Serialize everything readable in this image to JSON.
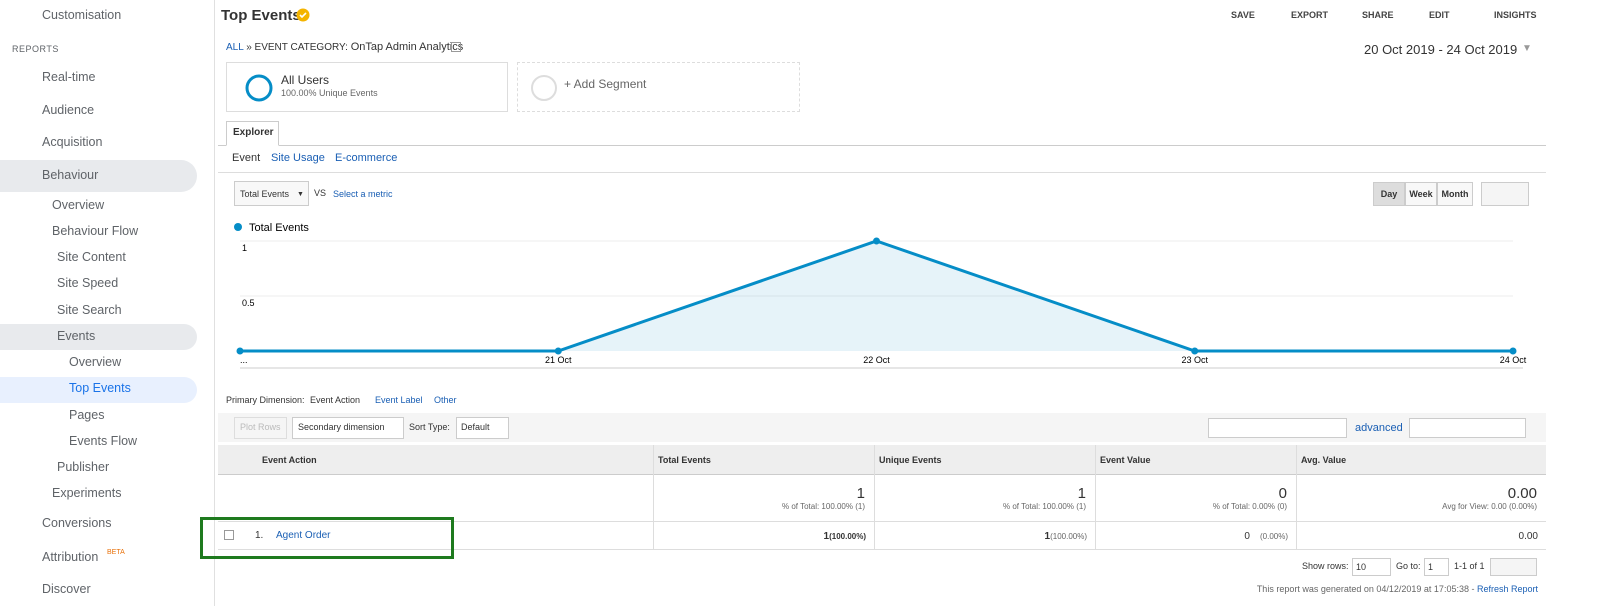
{
  "sidebar": {
    "top": "Customisation",
    "section": "REPORTS",
    "items": [
      "Real-time",
      "Audience",
      "Acquisition",
      "Behaviour",
      "Overview",
      "Behaviour Flow",
      "Site Content",
      "Site Speed",
      "Site Search",
      "Events",
      "Overview",
      "Top Events",
      "Pages",
      "Events Flow",
      "Publisher",
      "Experiments",
      "Conversions",
      "Attribution",
      "Discover"
    ],
    "beta": "BETA"
  },
  "header": {
    "title": "Top Events",
    "actions": [
      "SAVE",
      "EXPORT",
      "SHARE",
      "EDIT",
      "INSIGHTS"
    ]
  },
  "breadcrumb": {
    "all": "ALL",
    "separator": "»",
    "category_label": "EVENT CATEGORY:",
    "category": "OnTap Admin Analytics"
  },
  "date_range": "20 Oct 2019 - 24 Oct 2019",
  "segments": {
    "name": "All Users",
    "detail": "100.00% Unique Events",
    "add": "+ Add Segment"
  },
  "tabs": {
    "main": "Explorer",
    "sub": [
      "Event",
      "Site Usage",
      "E-commerce"
    ]
  },
  "metric": {
    "selected": "Total Events",
    "vs": "VS",
    "select": "Select a metric"
  },
  "granularity": [
    "Day",
    "Week",
    "Month"
  ],
  "chart_data": {
    "type": "line",
    "categories": [
      "...",
      "21 Oct",
      "22 Oct",
      "23 Oct",
      "24 Oct"
    ],
    "series": [
      {
        "name": "Total Events",
        "color": "#058dc7",
        "values": [
          0,
          0,
          1,
          0,
          0
        ]
      }
    ],
    "ylim": [
      0,
      1
    ],
    "yticks": [
      0.5,
      1
    ],
    "grid": true
  },
  "dimension": {
    "label": "Primary Dimension:",
    "options": [
      "Event Action",
      "Event Label",
      "Other"
    ]
  },
  "toolbar": {
    "plot_rows": "Plot Rows",
    "secondary": "Secondary dimension",
    "sort_label": "Sort Type:",
    "sort": "Default",
    "advanced": "advanced"
  },
  "table": {
    "columns": [
      "Event Action",
      "Total Events",
      "Unique Events",
      "Event Value",
      "Avg. Value"
    ],
    "totals": [
      [
        "1",
        "% of Total: 100.00% (1)"
      ],
      [
        "1",
        "% of Total: 100.00% (1)"
      ],
      [
        "0",
        "% of Total: 0.00% (0)"
      ],
      [
        "0.00",
        "Avg for View: 0.00 (0.00%)"
      ]
    ],
    "rows": [
      {
        "index": "1.",
        "name": "Agent Order",
        "cells": [
          [
            "1",
            "(100.00%)"
          ],
          [
            "1",
            "(100.00%)"
          ],
          [
            "0",
            "(0.00%)"
          ],
          [
            "0.00",
            ""
          ]
        ]
      }
    ]
  },
  "footer": {
    "show_rows": "Show rows:",
    "rows": "10",
    "goto": "Go to:",
    "page": "1",
    "range": "1-1 of 1",
    "generated": "This report was generated on 04/12/2019 at 17:05:38 - ",
    "refresh": "Refresh Report"
  }
}
